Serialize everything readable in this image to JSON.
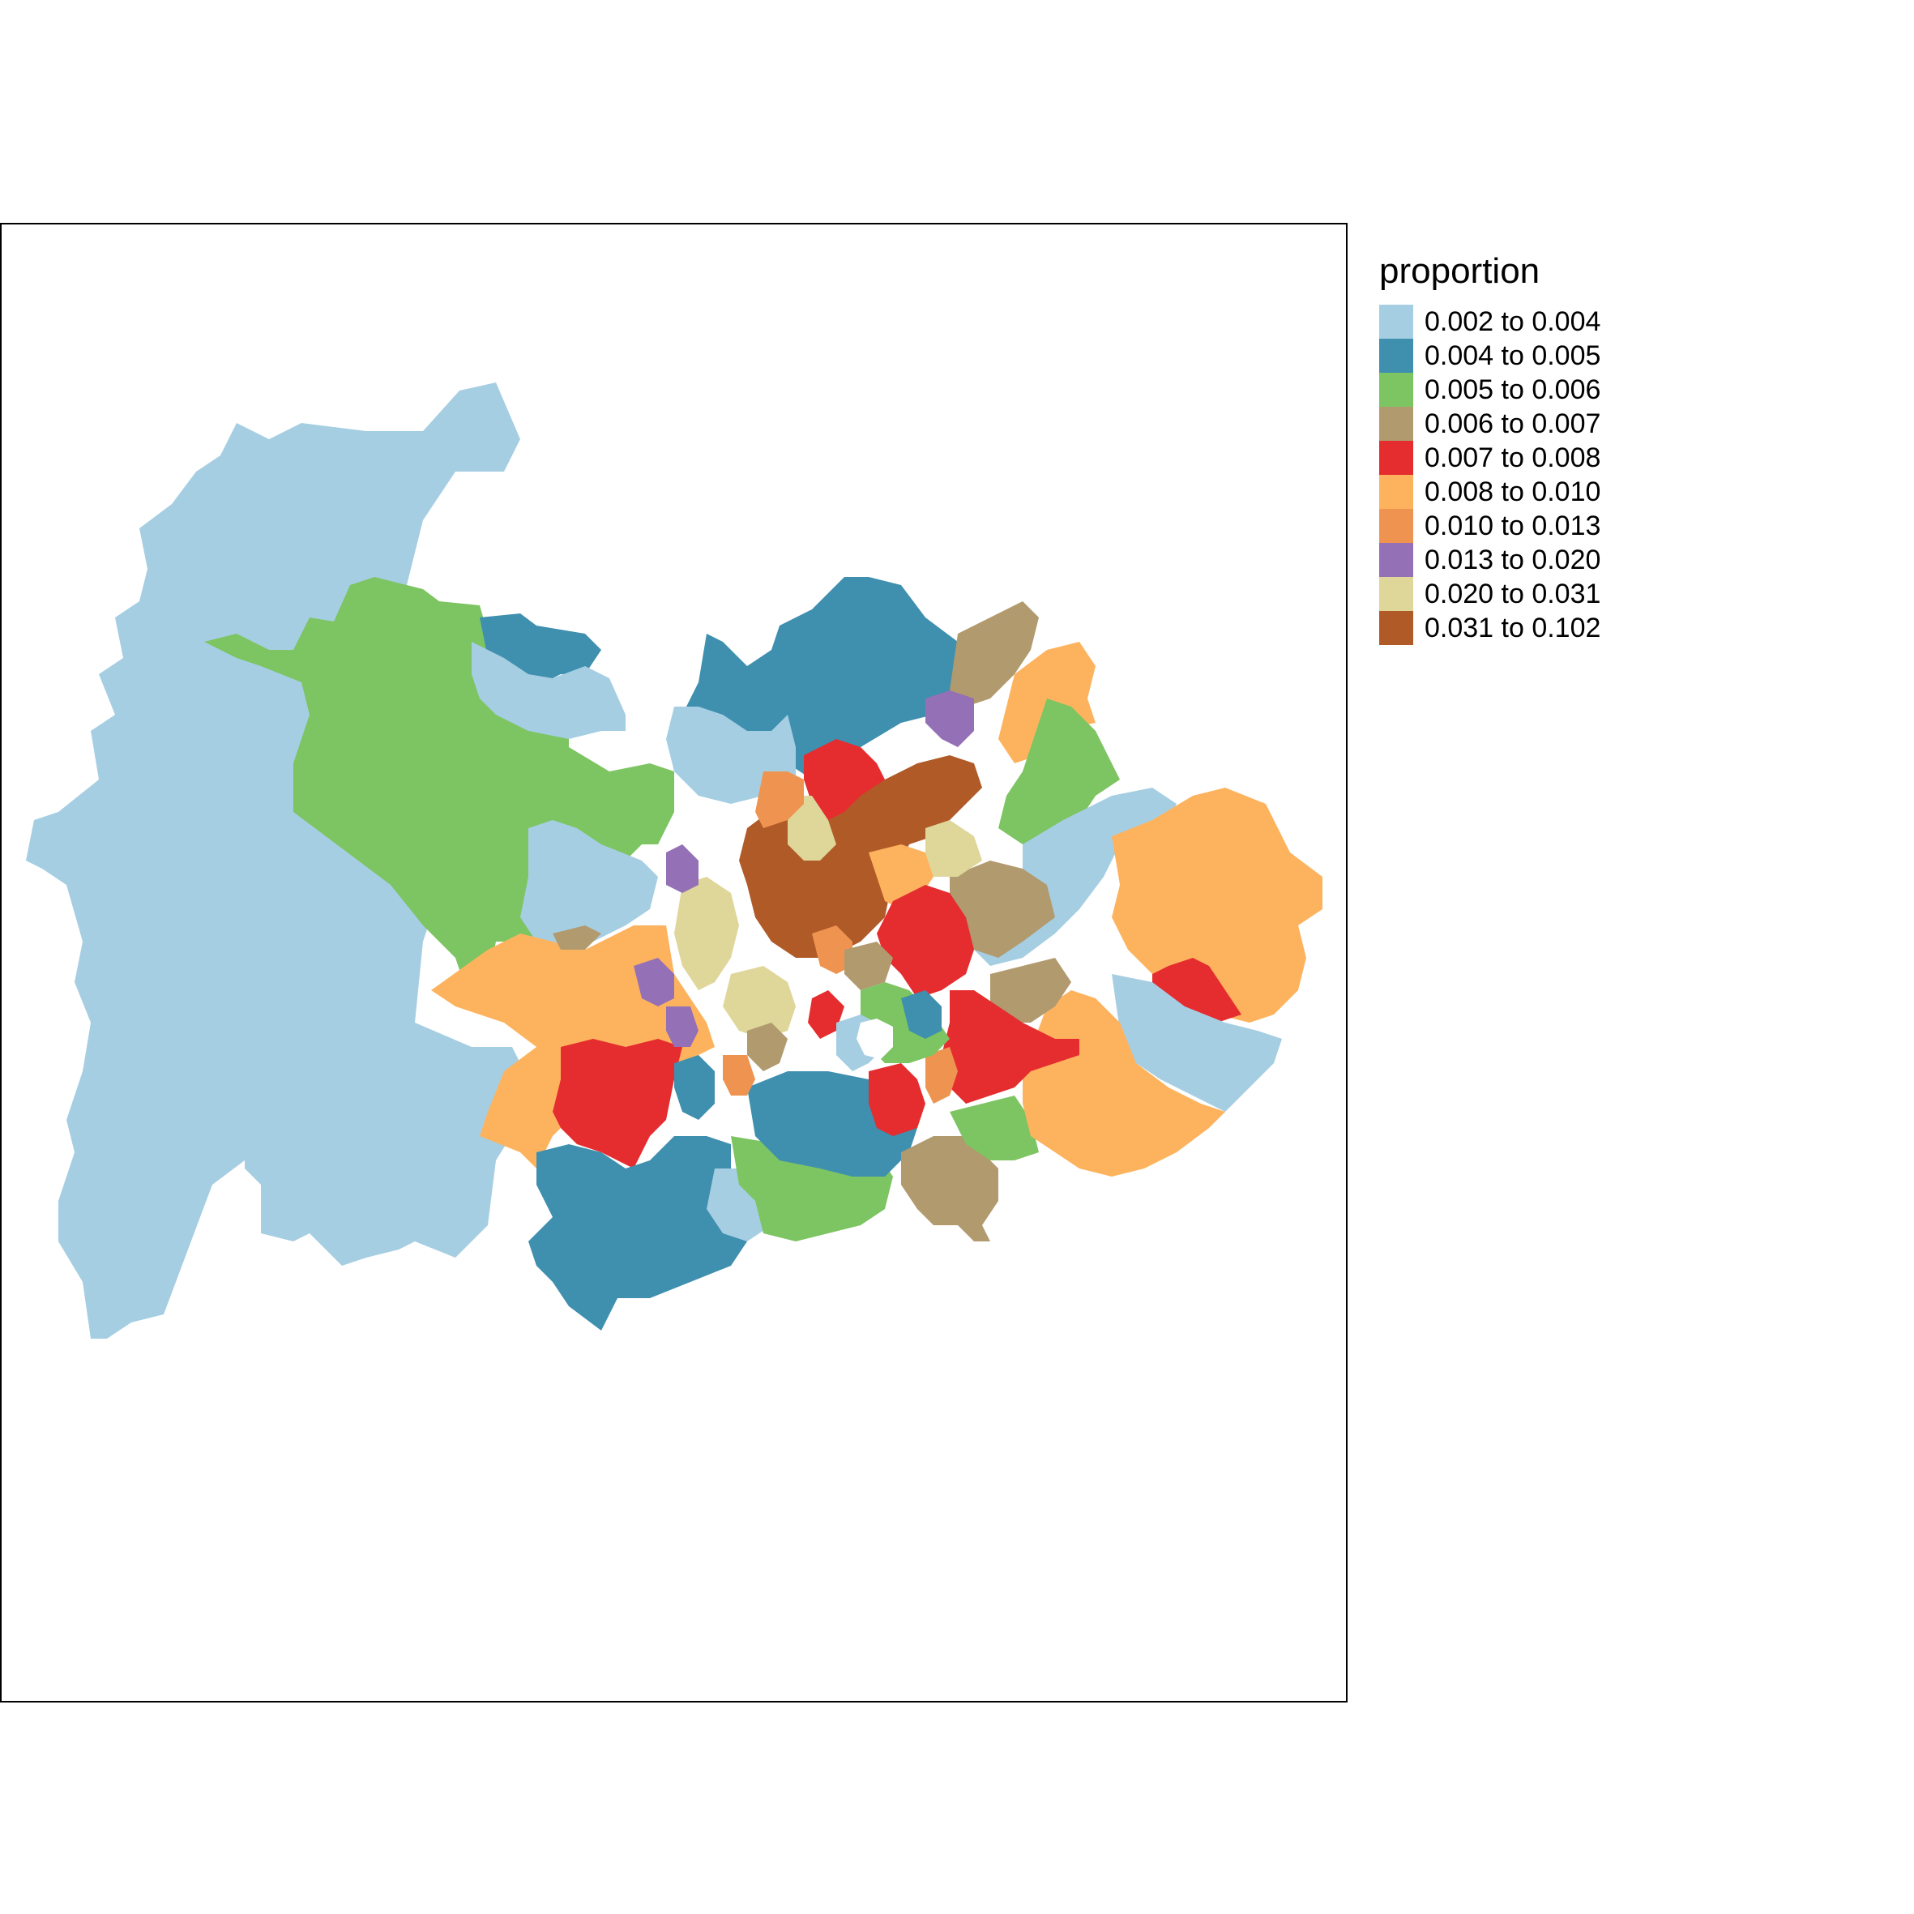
{
  "legend": {
    "title": "proportion",
    "classes": [
      {
        "label": "0.002 to 0.004",
        "color": "#A6CEE3"
      },
      {
        "label": "0.004 to 0.005",
        "color": "#3F8FAF"
      },
      {
        "label": "0.005 to 0.006",
        "color": "#7DC462"
      },
      {
        "label": "0.006 to 0.007",
        "color": "#B19A6E"
      },
      {
        "label": "0.007 to 0.008",
        "color": "#E52D2F"
      },
      {
        "label": "0.008 to 0.010",
        "color": "#FDB35E"
      },
      {
        "label": "0.010 to 0.013",
        "color": "#EE9450"
      },
      {
        "label": "0.013 to 0.020",
        "color": "#9470B6"
      },
      {
        "label": "0.020 to 0.031",
        "color": "#DFD69A"
      },
      {
        "label": "0.031 to 0.102",
        "color": "#B05A28"
      }
    ]
  }
}
